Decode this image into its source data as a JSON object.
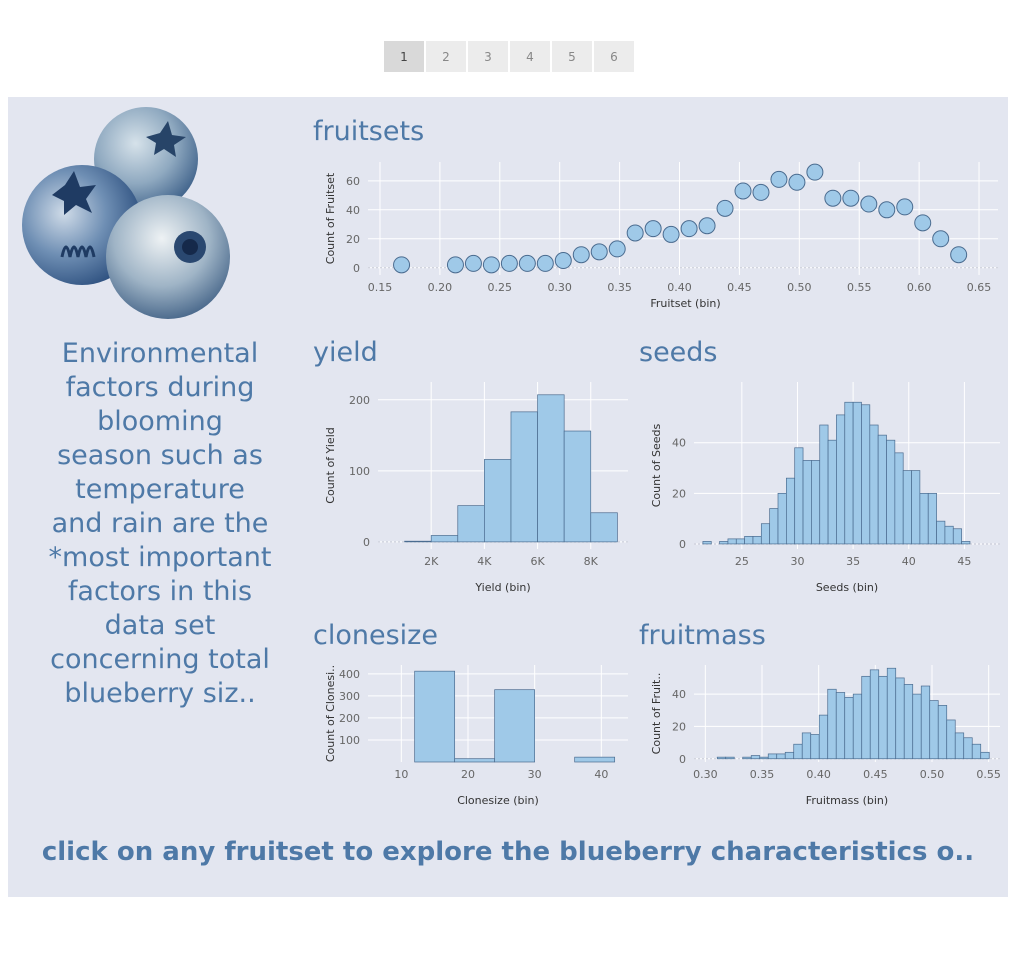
{
  "pagination": {
    "pages": [
      "1",
      "2",
      "3",
      "4",
      "5",
      "6"
    ],
    "active": "1"
  },
  "sidebar": {
    "text": "Environmental factors during blooming season such as temperature and rain are the *most important factors in this data set concerning total blueberry siz.."
  },
  "footer": {
    "text": "click on any fruitset to explore the blueberry characteristics o.."
  },
  "colors": {
    "accent": "#4e79a7",
    "mark_fill": "#9fc9e8",
    "mark_stroke": "#4a6b8f",
    "background": "#e3e6f0"
  },
  "images": {
    "blueberries": "blueberries-illustration"
  },
  "chart_data": [
    {
      "id": "fruitset",
      "type": "scatter",
      "title": "fruitsets",
      "xlabel": "Fruitset (bin)",
      "ylabel": "Count of Fruitset",
      "xlim": [
        0.14,
        0.67
      ],
      "ylim": [
        -5,
        73
      ],
      "xticks": [
        0.15,
        0.2,
        0.25,
        0.3,
        0.35,
        0.4,
        0.45,
        0.5,
        0.55,
        0.6,
        0.65
      ],
      "xtick_labels": [
        "0.15",
        "0.20",
        "0.25",
        "0.30",
        "0.35",
        "0.40",
        "0.45",
        "0.50",
        "0.55",
        "0.60",
        "0.65"
      ],
      "yticks": [
        0,
        20,
        40,
        60
      ],
      "ytick_labels": [
        "0",
        "20",
        "40",
        "60"
      ],
      "x": [
        0.168,
        0.213,
        0.228,
        0.243,
        0.258,
        0.273,
        0.288,
        0.303,
        0.318,
        0.333,
        0.348,
        0.363,
        0.378,
        0.393,
        0.408,
        0.423,
        0.438,
        0.453,
        0.468,
        0.483,
        0.498,
        0.513,
        0.528,
        0.543,
        0.558,
        0.573,
        0.588,
        0.603,
        0.618,
        0.633
      ],
      "y": [
        2,
        2,
        3,
        2,
        3,
        3,
        3,
        5,
        9,
        11,
        13,
        24,
        27,
        23,
        27,
        29,
        41,
        53,
        52,
        61,
        59,
        66,
        48,
        48,
        44,
        40,
        42,
        31,
        20,
        9
      ]
    },
    {
      "id": "yield",
      "type": "bar",
      "title": "yield",
      "xlabel": "Yield (bin)",
      "ylabel": "Count of Yield",
      "xlim": [
        0,
        9400
      ],
      "ylim": [
        -10,
        225
      ],
      "xticks": [
        2000,
        4000,
        6000,
        8000
      ],
      "xtick_labels": [
        "2K",
        "4K",
        "6K",
        "8K"
      ],
      "yticks": [
        0,
        100,
        200
      ],
      "ytick_labels": [
        "0",
        "100",
        "200"
      ],
      "bin_edges": [
        1000,
        2000,
        3000,
        4000,
        5000,
        6000,
        7000,
        8000,
        9000
      ],
      "values": [
        1,
        9,
        51,
        116,
        183,
        207,
        156,
        41
      ]
    },
    {
      "id": "seeds",
      "type": "bar",
      "title": "seeds",
      "xlabel": "Seeds (bin)",
      "ylabel": "Count of Seeds",
      "xlim": [
        20.7,
        48.2
      ],
      "ylim": [
        -2,
        64
      ],
      "xticks": [
        25,
        30,
        35,
        40,
        45
      ],
      "xtick_labels": [
        "25",
        "30",
        "35",
        "40",
        "45"
      ],
      "yticks": [
        0,
        20,
        40
      ],
      "ytick_labels": [
        "0",
        "20",
        "40"
      ],
      "bin_edges": [
        21.5,
        22.25,
        23,
        23.75,
        24.5,
        25.25,
        26,
        26.75,
        27.5,
        28.25,
        29,
        29.75,
        30.5,
        31.25,
        32,
        32.75,
        33.5,
        34.25,
        35,
        35.75,
        36.5,
        37.25,
        38,
        38.75,
        39.5,
        40.25,
        41,
        41.75,
        42.5,
        43.25,
        44,
        44.75,
        45.5,
        46.25,
        47
      ],
      "values": [
        1,
        0,
        1,
        2,
        2,
        3,
        3,
        8,
        14,
        20,
        26,
        38,
        33,
        33,
        47,
        41,
        51,
        56,
        56,
        55,
        47,
        43,
        41,
        36,
        29,
        29,
        20,
        20,
        9,
        7,
        6,
        1,
        0,
        0
      ]
    },
    {
      "id": "clonesize",
      "type": "bar",
      "title": "clonesize",
      "xlabel": "Clonesize (bin)",
      "ylabel": "Count of Clonesi..",
      "xlim": [
        5,
        44
      ],
      "ylim": [
        0,
        440
      ],
      "xticks": [
        10,
        20,
        30,
        40
      ],
      "xtick_labels": [
        "10",
        "20",
        "30",
        "40"
      ],
      "yticks": [
        100,
        200,
        300,
        400
      ],
      "ytick_labels": [
        "100",
        "200",
        "300",
        "400"
      ],
      "bin_edges": [
        12,
        18,
        24,
        30,
        36,
        42
      ],
      "values": [
        412,
        15,
        328,
        0,
        22
      ]
    },
    {
      "id": "fruitmass",
      "type": "bar",
      "title": "fruitmass",
      "xlabel": "Fruitmass (bin)",
      "ylabel": "Count of Fruit..",
      "xlim": [
        0.29,
        0.56
      ],
      "ylim": [
        -2,
        58
      ],
      "xticks": [
        0.3,
        0.35,
        0.4,
        0.45,
        0.5,
        0.55
      ],
      "xtick_labels": [
        "0.30",
        "0.35",
        "0.40",
        "0.45",
        "0.50",
        "0.55"
      ],
      "yticks": [
        0,
        20,
        40
      ],
      "ytick_labels": [
        "0",
        "20",
        "40"
      ],
      "bin_edges": [
        0.3105,
        0.318,
        0.3255,
        0.333,
        0.3405,
        0.348,
        0.3555,
        0.363,
        0.3705,
        0.378,
        0.3855,
        0.393,
        0.4005,
        0.408,
        0.4155,
        0.423,
        0.4305,
        0.438,
        0.4455,
        0.453,
        0.4605,
        0.468,
        0.4755,
        0.483,
        0.4905,
        0.498,
        0.5055,
        0.513,
        0.5205,
        0.528,
        0.5355,
        0.543,
        0.5505
      ],
      "values": [
        1,
        1,
        0,
        1,
        2,
        1,
        3,
        3,
        4,
        9,
        16,
        15,
        27,
        43,
        41,
        38,
        40,
        51,
        55,
        51,
        56,
        50,
        46,
        40,
        45,
        36,
        33,
        24,
        16,
        13,
        9,
        4
      ]
    }
  ]
}
